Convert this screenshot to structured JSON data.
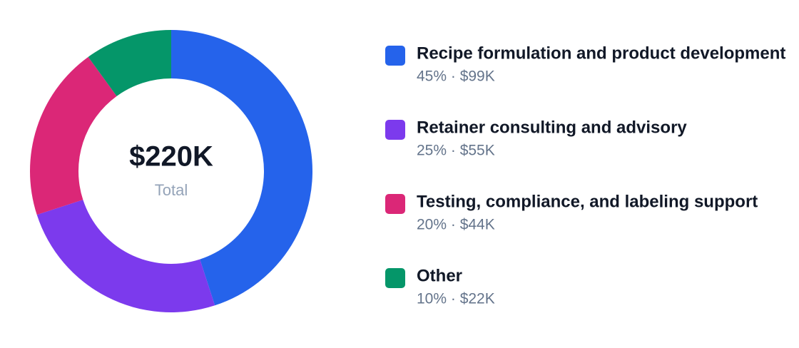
{
  "chart_data": {
    "type": "pie",
    "donut": true,
    "center_value": "$220K",
    "center_label": "Total",
    "categories": [
      "Recipe formulation and product development",
      "Retainer consulting and advisory",
      "Testing, compliance, and labeling support",
      "Other"
    ],
    "values": [
      45,
      25,
      20,
      10
    ],
    "value_labels": [
      "45% · $99K",
      "25% · $55K",
      "20% · $44K",
      "10% · $22K"
    ],
    "colors": [
      "#2563eb",
      "#7c3aed",
      "#db2777",
      "#059669"
    ]
  }
}
